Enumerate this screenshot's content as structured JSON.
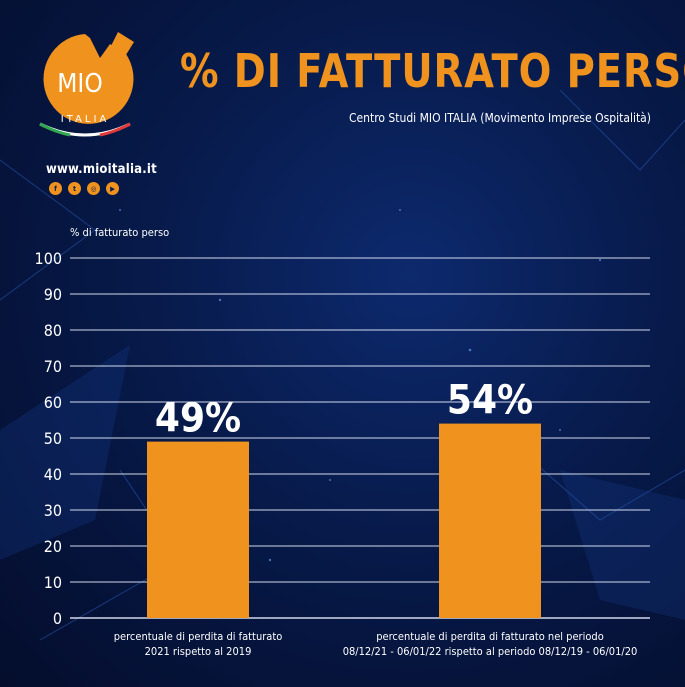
{
  "brand": {
    "logo_text": "MIO",
    "logo_subtext": "ITALIA",
    "website": "www.mioitalia.it",
    "social_icons": [
      "facebook-icon",
      "twitter-icon",
      "instagram-icon",
      "youtube-icon"
    ],
    "accent_color": "#f0931e"
  },
  "header": {
    "title": "% DI FATTURATO PERSO",
    "subtitle": "Centro Studi MIO ITALIA (Movimento Imprese Ospitalità)"
  },
  "chart_data": {
    "type": "bar",
    "ylabel": "% di fatturato perso",
    "ylim": [
      0,
      100
    ],
    "yticks": [
      0,
      10,
      20,
      30,
      40,
      50,
      60,
      70,
      80,
      90,
      100
    ],
    "grid": true,
    "bar_color": "#f0931e",
    "categories": [
      [
        "percentuale di perdita di fatturato",
        "2021 rispetto al 2019"
      ],
      [
        "percentuale di perdita di fatturato nel periodo",
        "08/12/21 - 06/01/22 rispetto al periodo 08/12/19 - 06/01/20"
      ]
    ],
    "values": [
      49,
      54
    ],
    "data_labels": [
      "49%",
      "54%"
    ]
  }
}
